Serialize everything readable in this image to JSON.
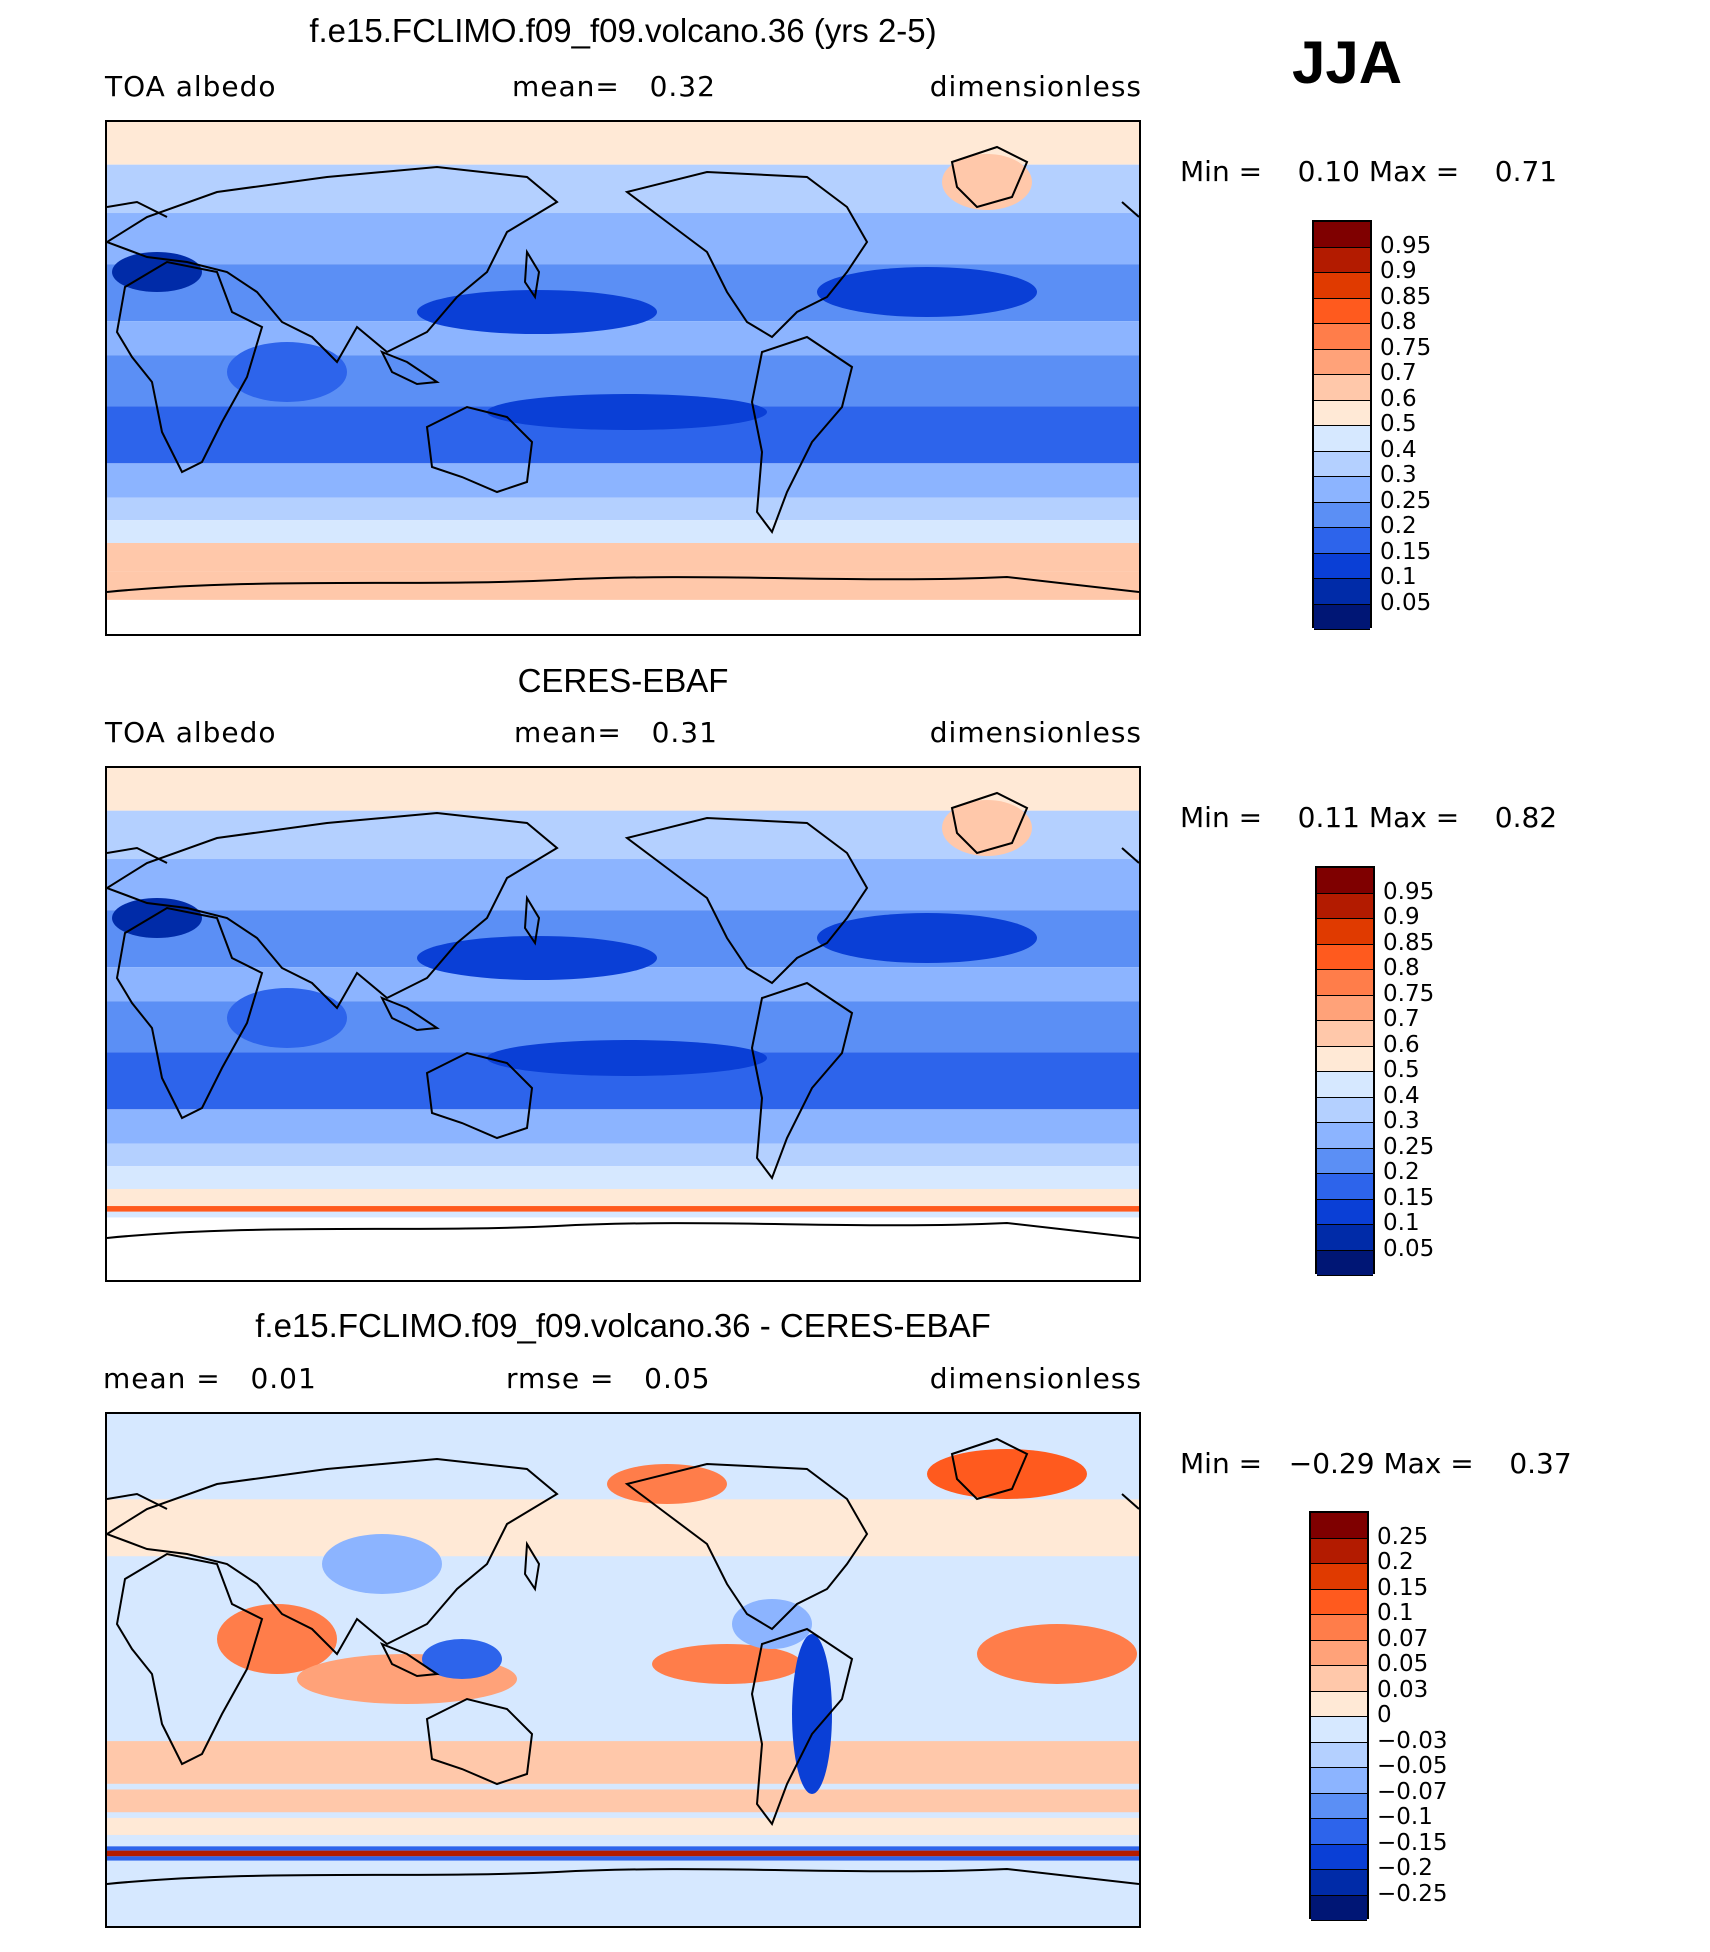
{
  "season": "JJA",
  "panels": [
    {
      "title": "f.e15.FCLIMO.f09_f09.volcano.36 (yrs 2-5)",
      "sub_left": "TOA albedo",
      "sub_mid": "mean=   0.32",
      "sub_right": "dimensionless",
      "min_label": "Min =",
      "min_value": "0.10",
      "max_label": "Max =",
      "max_value": "0.71",
      "colorbar_labels": [
        "0.95",
        "0.9",
        "0.85",
        "0.8",
        "0.75",
        "0.7",
        "0.6",
        "0.5",
        "0.4",
        "0.3",
        "0.25",
        "0.2",
        "0.15",
        "0.1",
        "0.05"
      ]
    },
    {
      "title": "CERES-EBAF",
      "sub_left": "TOA albedo",
      "sub_mid": "mean=   0.31",
      "sub_right": "dimensionless",
      "min_label": "Min =",
      "min_value": "0.11",
      "max_label": "Max =",
      "max_value": "0.82",
      "colorbar_labels": [
        "0.95",
        "0.9",
        "0.85",
        "0.8",
        "0.75",
        "0.7",
        "0.6",
        "0.5",
        "0.4",
        "0.3",
        "0.25",
        "0.2",
        "0.15",
        "0.1",
        "0.05"
      ]
    },
    {
      "title": "f.e15.FCLIMO.f09_f09.volcano.36 - CERES-EBAF",
      "sub_left": "mean =   0.01",
      "sub_mid": "rmse =   0.05",
      "sub_right": "dimensionless",
      "min_label": "Min =",
      "min_value": "−0.29",
      "max_label": "Max =",
      "max_value": "0.37",
      "colorbar_labels": [
        "0.25",
        "0.2",
        "0.15",
        "0.1",
        "0.07",
        "0.05",
        "0.03",
        "0",
        "−0.03",
        "−0.05",
        "−0.07",
        "−0.1",
        "−0.15",
        "−0.2",
        "−0.25"
      ]
    }
  ],
  "colors": {
    "scale": [
      "#7f0000",
      "#b31b00",
      "#e03a00",
      "#ff5a1e",
      "#ff7d4a",
      "#ffa279",
      "#ffc8aa",
      "#ffe9d6",
      "#d6e8ff",
      "#b4d0ff",
      "#8cb4ff",
      "#5b8ff5",
      "#2d64eb",
      "#0a3fd6",
      "#002ba8",
      "#001675"
    ],
    "coast": "#000000"
  },
  "chart_data": [
    {
      "type": "heatmap",
      "title": "f.e15.FCLIMO.f09_f09.volcano.36 (yrs 2-5)",
      "variable": "TOA albedo",
      "units": "dimensionless",
      "season": "JJA",
      "mean": 0.32,
      "min": 0.1,
      "max": 0.71,
      "levels": [
        0.05,
        0.1,
        0.15,
        0.2,
        0.25,
        0.3,
        0.4,
        0.5,
        0.6,
        0.7,
        0.75,
        0.8,
        0.85,
        0.9,
        0.95
      ]
    },
    {
      "type": "heatmap",
      "title": "CERES-EBAF",
      "variable": "TOA albedo",
      "units": "dimensionless",
      "season": "JJA",
      "mean": 0.31,
      "min": 0.11,
      "max": 0.82,
      "levels": [
        0.05,
        0.1,
        0.15,
        0.2,
        0.25,
        0.3,
        0.4,
        0.5,
        0.6,
        0.7,
        0.75,
        0.8,
        0.85,
        0.9,
        0.95
      ]
    },
    {
      "type": "heatmap",
      "title": "f.e15.FCLIMO.f09_f09.volcano.36 - CERES-EBAF",
      "units": "dimensionless",
      "season": "JJA",
      "mean": 0.01,
      "rmse": 0.05,
      "min": -0.29,
      "max": 0.37,
      "levels": [
        -0.25,
        -0.2,
        -0.15,
        -0.1,
        -0.07,
        -0.05,
        -0.03,
        0,
        0.03,
        0.05,
        0.07,
        0.1,
        0.15,
        0.2,
        0.25
      ]
    }
  ]
}
